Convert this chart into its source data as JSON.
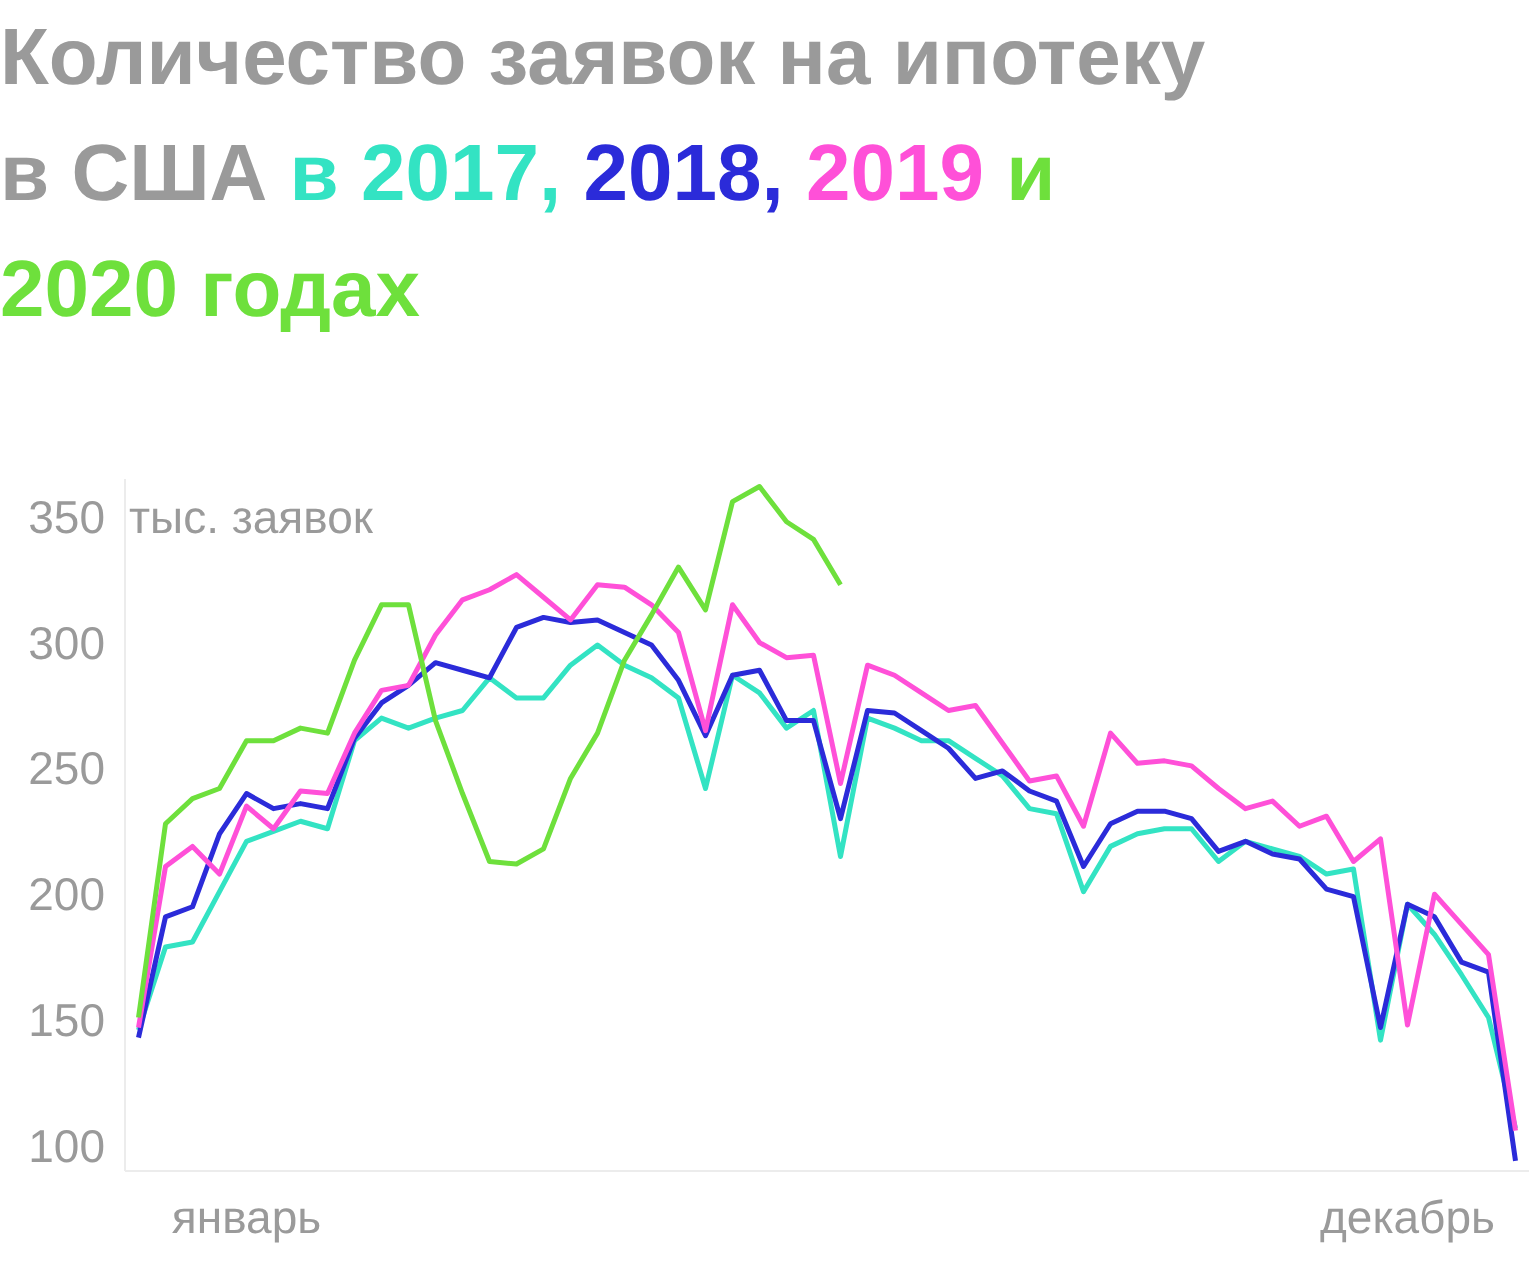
{
  "chart_data": {
    "type": "line",
    "title": "Количество заявок на ипотеку в США",
    "ylabel": "тыс. заявок",
    "categories": [
      null,
      null,
      null,
      null,
      "январь",
      null,
      null,
      null,
      null,
      null,
      null,
      null,
      null,
      null,
      null,
      null,
      null,
      null,
      null,
      null,
      null,
      null,
      null,
      null,
      null,
      null,
      null,
      null,
      null,
      null,
      null,
      null,
      null,
      null,
      null,
      null,
      null,
      null,
      null,
      null,
      null,
      null,
      null,
      null,
      null,
      null,
      null,
      "декабрь",
      null,
      null,
      null,
      null
    ],
    "ylim": [
      90,
      365
    ],
    "yticks": [
      100,
      150,
      200,
      250,
      300,
      350
    ],
    "grid": false,
    "line_style": "solid",
    "series": [
      {
        "name": "в 2017,",
        "color": "#33e3c3",
        "values": [
          146,
          179,
          181,
          201,
          221,
          225,
          229,
          226,
          261,
          270,
          266,
          270,
          273,
          286,
          278,
          278,
          291,
          299,
          291,
          286,
          278,
          242,
          287,
          280,
          266,
          273,
          215,
          270,
          266,
          261,
          261,
          254,
          247,
          234,
          232,
          201,
          219,
          224,
          226,
          226,
          213,
          221,
          218,
          215,
          208,
          210,
          142,
          196,
          184,
          168,
          151,
          107
        ]
      },
      {
        "name": "2018,",
        "color": "#2b2bd9",
        "values": [
          143,
          191,
          195,
          224,
          240,
          234,
          236,
          234,
          262,
          276,
          283,
          292,
          289,
          286,
          306,
          310,
          308,
          309,
          304,
          299,
          285,
          263,
          287,
          289,
          269,
          269,
          230,
          273,
          272,
          265,
          258,
          246,
          249,
          241,
          237,
          211,
          228,
          233,
          233,
          230,
          217,
          221,
          216,
          214,
          202,
          199,
          147,
          196,
          191,
          173,
          169,
          94
        ]
      },
      {
        "name": "2019",
        "color": "#ff50d8",
        "values": [
          147,
          211,
          219,
          208,
          235,
          226,
          241,
          240,
          264,
          281,
          283,
          303,
          317,
          321,
          327,
          318,
          309,
          323,
          322,
          315,
          304,
          265,
          315,
          300,
          294,
          295,
          244,
          291,
          287,
          280,
          273,
          275,
          260,
          245,
          247,
          227,
          264,
          252,
          253,
          251,
          242,
          234,
          237,
          227,
          231,
          213,
          222,
          148,
          200,
          188,
          176,
          106
        ]
      },
      {
        "name": "и 2020 годах",
        "color": "#6ee03c",
        "values": [
          151,
          228,
          238,
          242,
          261,
          261,
          266,
          264,
          293,
          315,
          315,
          269,
          240,
          213,
          212,
          218,
          246,
          264,
          293,
          311,
          330,
          313,
          356,
          362,
          348,
          341,
          323,
          null,
          null,
          null,
          null,
          null,
          null,
          null,
          null,
          null,
          null,
          null,
          null,
          null,
          null,
          null,
          null,
          null,
          null,
          null,
          null,
          null,
          null,
          null,
          null,
          null
        ]
      }
    ]
  }
}
